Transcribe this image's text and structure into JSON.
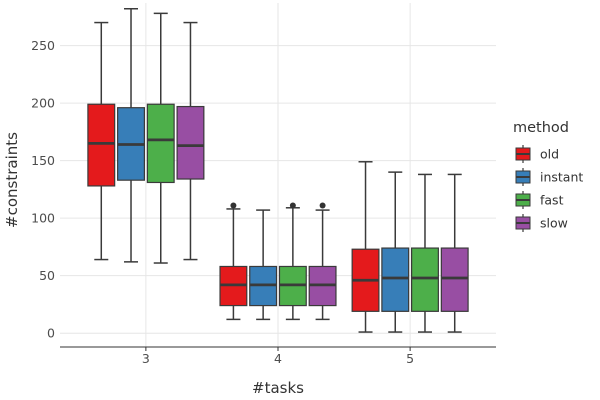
{
  "chart_data": {
    "type": "boxplot",
    "xlabel": "#tasks",
    "ylabel": "#constraints",
    "categories": [
      "3",
      "4",
      "5"
    ],
    "y_ticks": [
      0,
      50,
      100,
      150,
      200,
      250
    ],
    "ylim": [
      -12,
      287
    ],
    "legend": {
      "title": "method",
      "position": "right"
    },
    "grid": true,
    "series": [
      {
        "name": "old",
        "color": "#E41A1C",
        "boxes": [
          {
            "category": "3",
            "min": 64,
            "q1": 128,
            "median": 165,
            "q3": 199,
            "max": 270,
            "outliers": []
          },
          {
            "category": "4",
            "min": 12,
            "q1": 24,
            "median": 42,
            "q3": 58,
            "max": 108,
            "outliers": [
              111
            ]
          },
          {
            "category": "5",
            "min": 1,
            "q1": 19,
            "median": 46,
            "q3": 73,
            "max": 149,
            "outliers": []
          }
        ]
      },
      {
        "name": "instant",
        "color": "#377EB8",
        "boxes": [
          {
            "category": "3",
            "min": 62,
            "q1": 133,
            "median": 164,
            "q3": 196,
            "max": 282,
            "outliers": []
          },
          {
            "category": "4",
            "min": 12,
            "q1": 24,
            "median": 42,
            "q3": 58,
            "max": 107,
            "outliers": []
          },
          {
            "category": "5",
            "min": 1,
            "q1": 19,
            "median": 48,
            "q3": 74,
            "max": 140,
            "outliers": []
          }
        ]
      },
      {
        "name": "fast",
        "color": "#4DAF4A",
        "boxes": [
          {
            "category": "3",
            "min": 61,
            "q1": 131,
            "median": 168,
            "q3": 199,
            "max": 278,
            "outliers": []
          },
          {
            "category": "4",
            "min": 12,
            "q1": 24,
            "median": 42,
            "q3": 58,
            "max": 109,
            "outliers": [
              111
            ]
          },
          {
            "category": "5",
            "min": 1,
            "q1": 19,
            "median": 48,
            "q3": 74,
            "max": 138,
            "outliers": []
          }
        ]
      },
      {
        "name": "slow",
        "color": "#984EA3",
        "boxes": [
          {
            "category": "3",
            "min": 64,
            "q1": 134,
            "median": 163,
            "q3": 197,
            "max": 270,
            "outliers": []
          },
          {
            "category": "4",
            "min": 12,
            "q1": 24,
            "median": 42,
            "q3": 58,
            "max": 107,
            "outliers": [
              111
            ]
          },
          {
            "category": "5",
            "min": 1,
            "q1": 19,
            "median": 48,
            "q3": 74,
            "max": 138,
            "outliers": []
          }
        ]
      }
    ]
  }
}
